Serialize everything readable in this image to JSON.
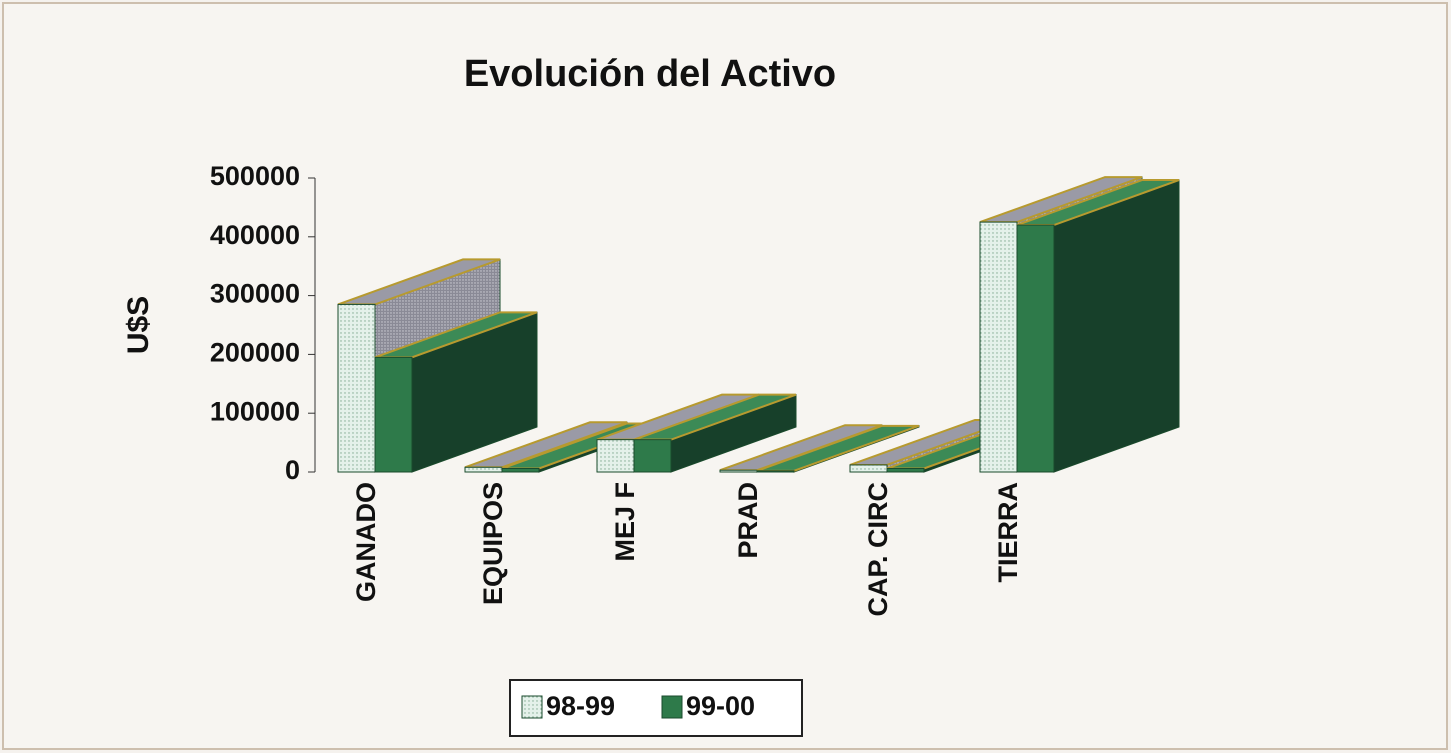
{
  "chart_data": {
    "type": "bar3d",
    "title": "Evolución del Activo",
    "y_label": "U$S",
    "categories": [
      "GANADO",
      "EQUIPOS",
      "MEJ F",
      "PRAD",
      "CAP. CIRC",
      "TIERRA"
    ],
    "series": [
      {
        "name": "98-99",
        "color": "#e4f1ea",
        "values": [
          285000,
          8000,
          55000,
          3000,
          12000,
          425000
        ]
      },
      {
        "name": "99-00",
        "color": "#2e7a4a",
        "values": [
          195000,
          6000,
          55000,
          2000,
          6000,
          420000
        ]
      }
    ],
    "ylim": [
      0,
      500000
    ],
    "yticks": [
      0,
      100000,
      200000,
      300000,
      400000,
      500000
    ],
    "legend": "bottom"
  }
}
